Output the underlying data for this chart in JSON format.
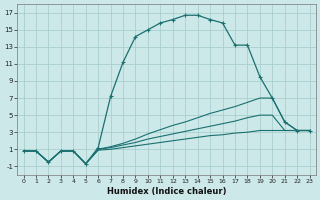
{
  "xlabel": "Humidex (Indice chaleur)",
  "bg_color": "#cce8e8",
  "grid_color": "#aad0d0",
  "line_color": "#1a7070",
  "xlim": [
    -0.5,
    23.5
  ],
  "ylim": [
    -2,
    18
  ],
  "xticks": [
    0,
    1,
    2,
    3,
    4,
    5,
    6,
    7,
    8,
    9,
    10,
    11,
    12,
    13,
    14,
    15,
    16,
    17,
    18,
    19,
    20,
    21,
    22,
    23
  ],
  "yticks": [
    -1,
    1,
    3,
    5,
    7,
    9,
    11,
    13,
    15,
    17
  ],
  "line1_x": [
    0,
    1,
    2,
    3,
    4,
    5,
    6,
    7,
    8,
    9,
    10,
    11,
    12,
    13,
    14,
    15,
    16,
    17,
    18,
    19,
    20,
    21,
    22,
    23
  ],
  "line1_y": [
    0.8,
    0.8,
    -0.5,
    0.8,
    0.8,
    -0.7,
    1.2,
    7.2,
    11.2,
    14.2,
    15.0,
    15.8,
    16.2,
    16.7,
    16.7,
    16.2,
    15.8,
    13.2,
    13.2,
    9.5,
    7.0,
    4.2,
    3.2,
    3.2
  ],
  "line2_x": [
    0,
    1,
    2,
    3,
    4,
    5,
    6,
    7,
    8,
    9,
    10,
    11,
    12,
    13,
    14,
    15,
    16,
    17,
    18,
    19,
    20,
    21,
    22,
    23
  ],
  "line2_y": [
    0.8,
    0.8,
    -0.5,
    0.8,
    0.8,
    -0.7,
    1.0,
    1.3,
    1.7,
    2.2,
    2.8,
    3.3,
    3.8,
    4.2,
    4.7,
    5.2,
    5.6,
    6.0,
    6.5,
    7.0,
    7.0,
    4.2,
    3.2,
    3.2
  ],
  "line3_x": [
    0,
    1,
    2,
    3,
    4,
    5,
    6,
    7,
    8,
    9,
    10,
    11,
    12,
    13,
    14,
    15,
    16,
    17,
    18,
    19,
    20,
    21,
    22,
    23
  ],
  "line3_y": [
    0.8,
    0.8,
    -0.5,
    0.8,
    0.8,
    -0.7,
    1.0,
    1.2,
    1.5,
    1.8,
    2.2,
    2.5,
    2.8,
    3.1,
    3.4,
    3.7,
    4.0,
    4.3,
    4.7,
    5.0,
    5.0,
    3.2,
    3.2,
    3.2
  ],
  "line4_x": [
    0,
    1,
    2,
    3,
    4,
    5,
    6,
    7,
    8,
    9,
    10,
    11,
    12,
    13,
    14,
    15,
    16,
    17,
    18,
    19,
    20,
    21,
    22,
    23
  ],
  "line4_y": [
    0.8,
    0.8,
    -0.5,
    0.8,
    0.8,
    -0.7,
    0.9,
    1.0,
    1.2,
    1.4,
    1.6,
    1.8,
    2.0,
    2.2,
    2.4,
    2.6,
    2.7,
    2.9,
    3.0,
    3.2,
    3.2,
    3.2,
    3.2,
    3.2
  ]
}
